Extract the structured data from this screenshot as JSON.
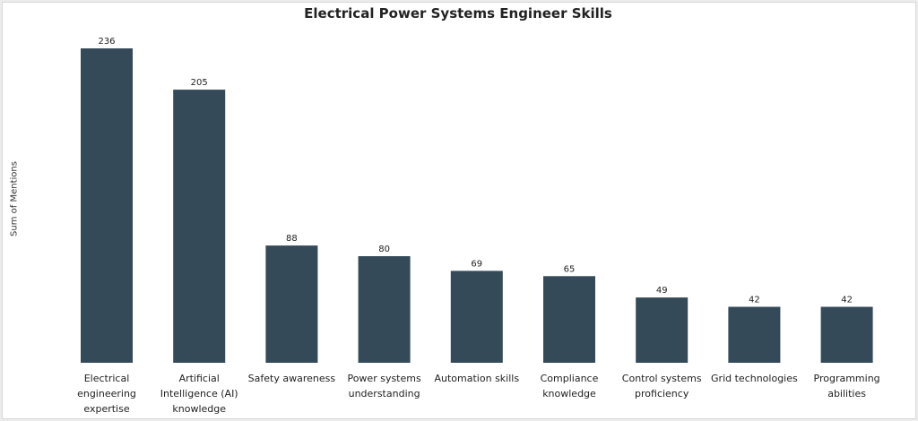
{
  "chart_data": {
    "type": "bar",
    "title": "Electrical Power Systems Engineer Skills",
    "xlabel": "",
    "ylabel": "Sum of Mentions",
    "categories": [
      "Electrical engineering expertise",
      "Artificial Intelligence (AI) knowledge",
      "Safety awareness",
      "Power systems understanding",
      "Automation skills",
      "Compliance knowledge",
      "Control systems proficiency",
      "Grid technologies",
      "Programming abilities"
    ],
    "values": [
      236,
      205,
      88,
      80,
      69,
      65,
      49,
      42,
      42
    ],
    "ylim": [
      0,
      250
    ],
    "grid": false,
    "legend": "none",
    "bar_color": "#344a59",
    "data_labels": true
  }
}
